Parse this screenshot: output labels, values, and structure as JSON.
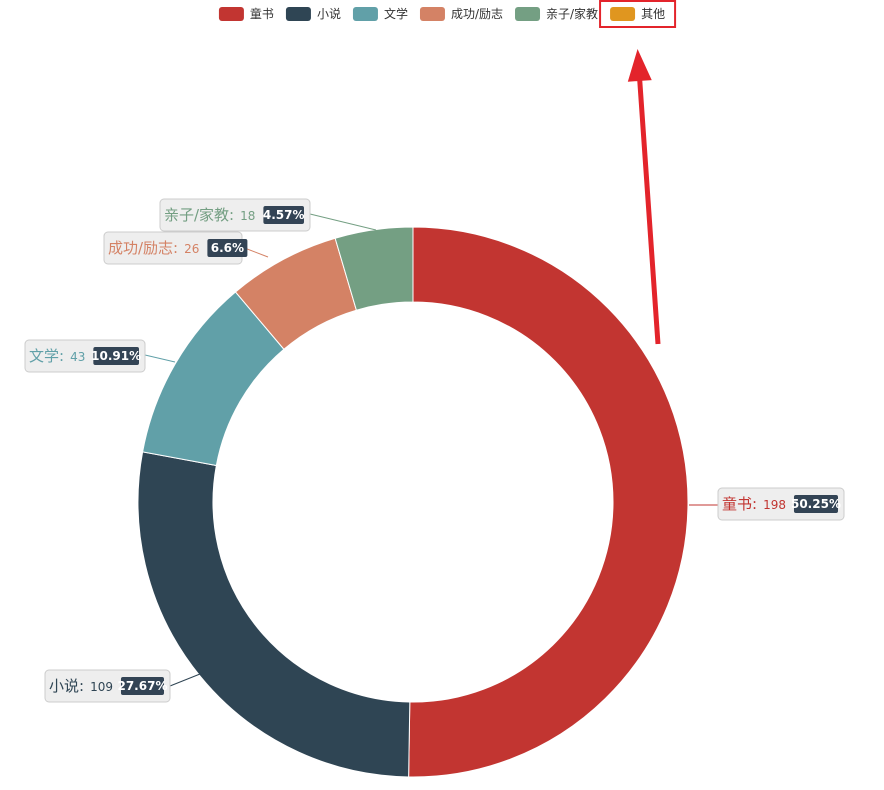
{
  "chart_data": {
    "type": "pie",
    "variant": "donut",
    "title": "",
    "legend_placement": "top-center",
    "categories": [
      "童书",
      "小说",
      "文学",
      "成功/励志",
      "亲子/家教",
      "其他"
    ],
    "values": [
      198,
      109,
      43,
      26,
      18,
      0
    ],
    "percent_labels": [
      "50.25%",
      "27.67%",
      "10.91%",
      "6.6%",
      "4.57%",
      ""
    ],
    "colors": [
      "#c23531",
      "#2f4554",
      "#61a0a8",
      "#d48265",
      "#749f83",
      "#e0961f"
    ]
  },
  "annotation": {
    "highlighted_legend_item": "其他",
    "highlight_color": "#e3242b"
  }
}
